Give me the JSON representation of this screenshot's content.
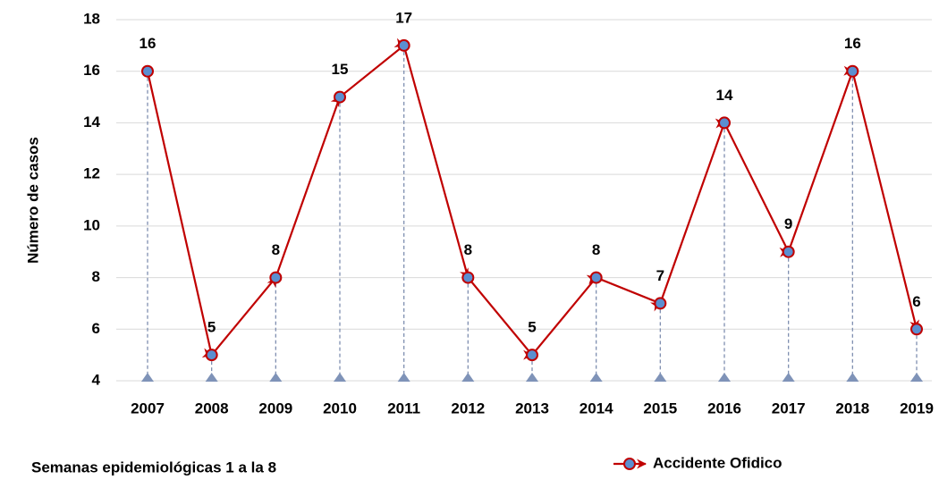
{
  "chart_data": {
    "type": "line",
    "y_label": "Número de casos",
    "x_label": "Semanas epidemiológicas 1 a la 8",
    "categories": [
      "2007",
      "2008",
      "2009",
      "2010",
      "2011",
      "2012",
      "2013",
      "2014",
      "2015",
      "2016",
      "2017",
      "2018",
      "2019"
    ],
    "series": [
      {
        "name": "Accidente Ofidico",
        "color": "#c00000",
        "marker_color": "#5b8fd0",
        "values": [
          16,
          5,
          8,
          15,
          17,
          8,
          5,
          8,
          7,
          14,
          9,
          16,
          6
        ]
      }
    ],
    "ylim": [
      4,
      18
    ],
    "yticks": [
      4,
      6,
      8,
      10,
      12,
      14,
      16,
      18
    ],
    "grid": true
  }
}
